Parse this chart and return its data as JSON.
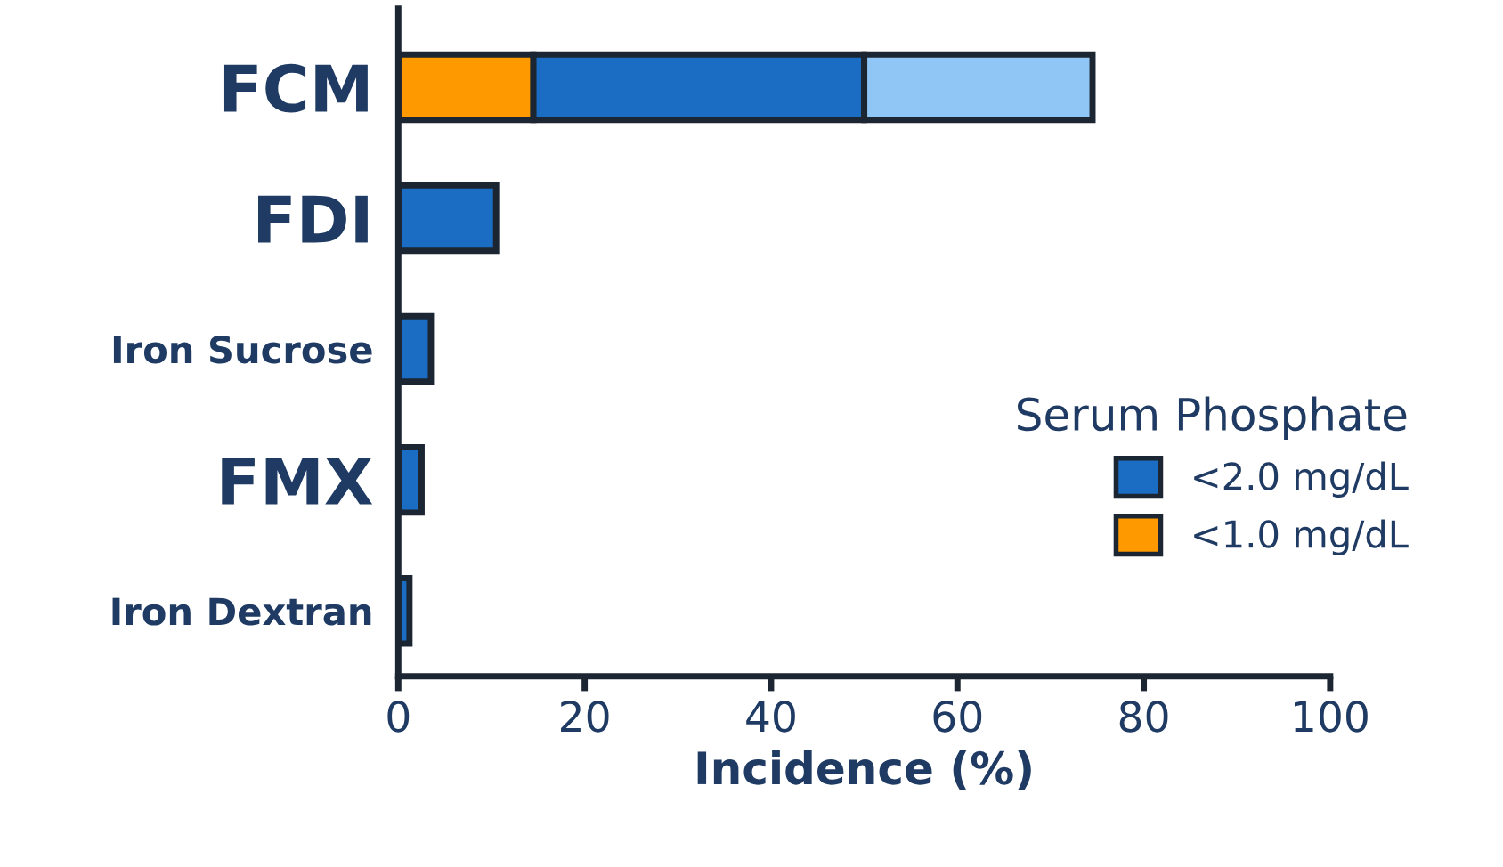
{
  "chart_data": {
    "type": "bar",
    "orientation": "horizontal",
    "stacked": true,
    "xlabel": "Incidence (%)",
    "legend_title": "Serum Phosphate",
    "legend": "right",
    "categories": [
      "FCM",
      "FDI",
      "Iron Sucrose",
      "FMX",
      "Iron Dextran"
    ],
    "series": [
      {
        "name": "<1.0 mg/dL",
        "color": "#ff9900",
        "values": [
          14.5,
          null,
          null,
          null,
          null
        ]
      },
      {
        "name": "<2.0 mg/dL",
        "color": "#1a6dc2",
        "values": [
          35.5,
          10.5,
          3.5,
          2.5,
          1.2
        ]
      },
      {
        "color": "#90c6f5",
        "values": [
          24.5,
          null,
          null,
          null,
          null
        ]
      }
    ],
    "xlim": [
      0,
      100
    ],
    "xticks": [
      0,
      20,
      40,
      60,
      80,
      100
    ],
    "grid": false
  }
}
